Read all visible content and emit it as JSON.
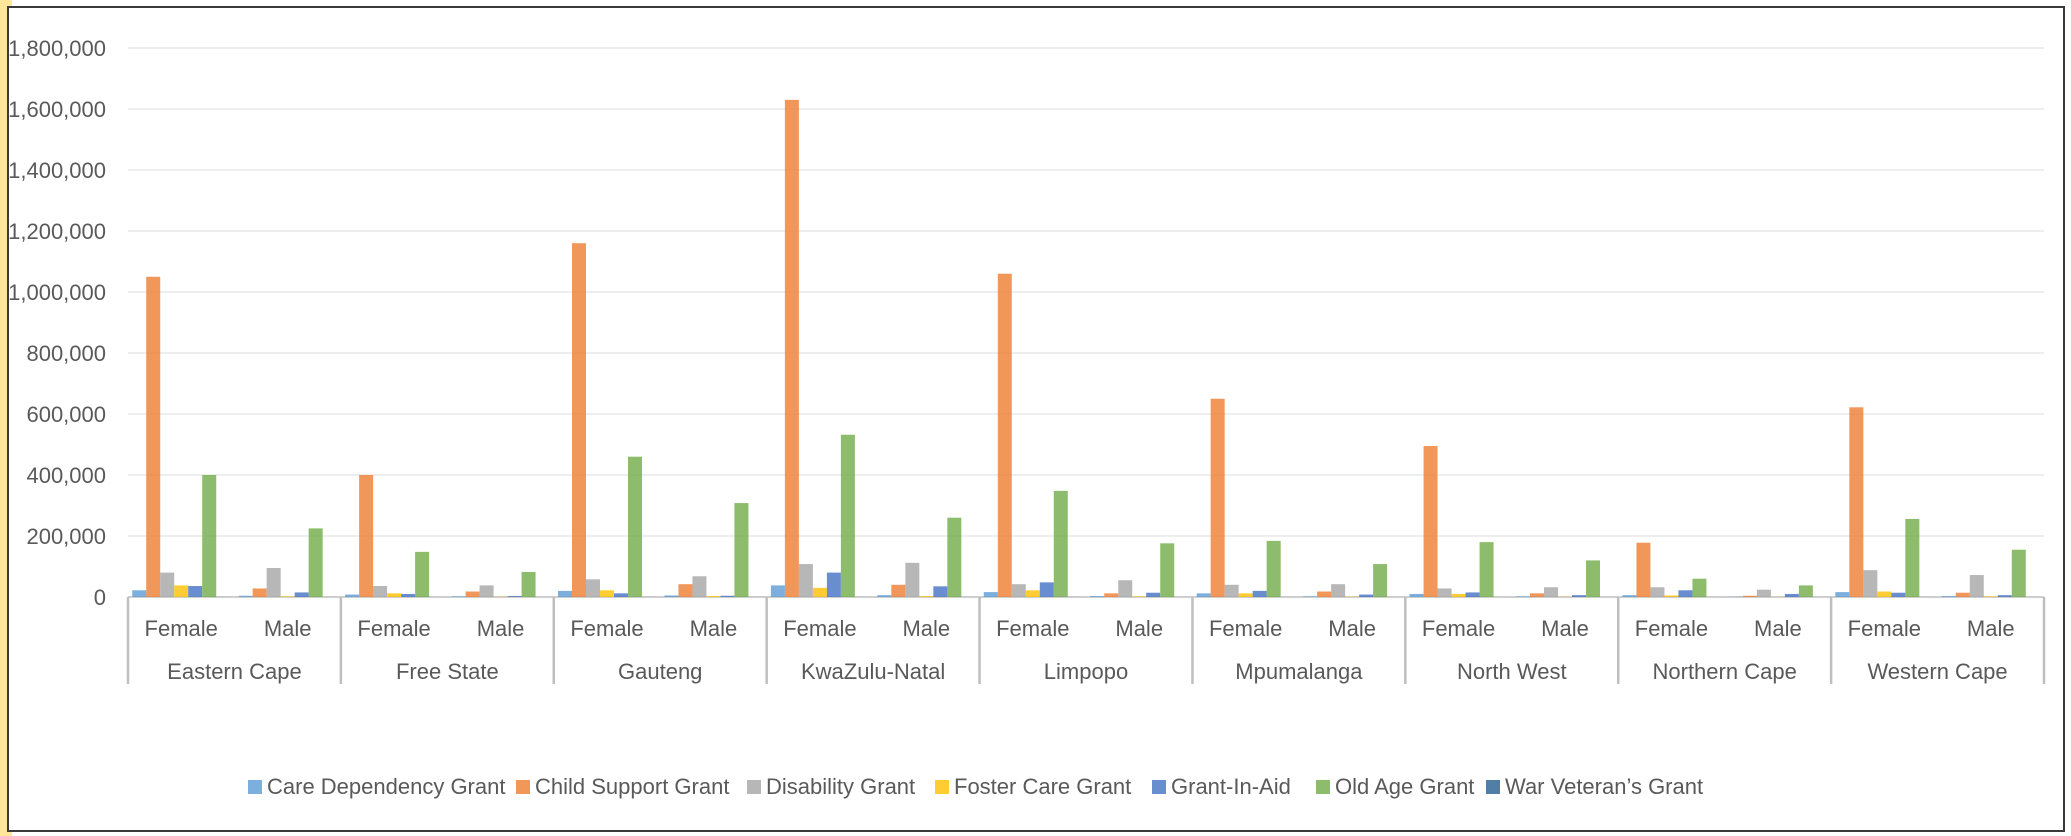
{
  "chart_data": {
    "type": "bar",
    "title": "",
    "xlabel": "",
    "ylabel": "",
    "ylim": [
      0,
      1800000
    ],
    "yticks": [
      0,
      200000,
      400000,
      600000,
      800000,
      1000000,
      1200000,
      1400000,
      1600000,
      1800000
    ],
    "ytick_labels": [
      "0",
      "200,000",
      "400,000",
      "600,000",
      "800,000",
      "1,000,000",
      "1,200,000",
      "1,400,000",
      "1,600,000",
      "1,800,000"
    ],
    "grid": true,
    "legend_position": "bottom",
    "groups": [
      {
        "name": "Eastern Cape",
        "subcategories": [
          "Female",
          "Male"
        ]
      },
      {
        "name": "Free State",
        "subcategories": [
          "Female",
          "Male"
        ]
      },
      {
        "name": "Gauteng",
        "subcategories": [
          "Female",
          "Male"
        ]
      },
      {
        "name": "KwaZulu-Natal",
        "subcategories": [
          "Female",
          "Male"
        ]
      },
      {
        "name": "Limpopo",
        "subcategories": [
          "Female",
          "Male"
        ]
      },
      {
        "name": "Mpumalanga",
        "subcategories": [
          "Female",
          "Male"
        ]
      },
      {
        "name": "North West",
        "subcategories": [
          "Female",
          "Male"
        ]
      },
      {
        "name": "Northern Cape",
        "subcategories": [
          "Female",
          "Male"
        ]
      },
      {
        "name": "Western Cape",
        "subcategories": [
          "Female",
          "Male"
        ]
      }
    ],
    "series": [
      {
        "name": "Care Dependency Grant",
        "color": "#5b9bd5",
        "values": [
          22000,
          4000,
          8000,
          2000,
          20000,
          5000,
          38000,
          6000,
          16000,
          3000,
          12000,
          2000,
          10000,
          2000,
          6000,
          1000,
          16000,
          3000
        ]
      },
      {
        "name": "Child Support Grant",
        "color": "#ed7d31",
        "values": [
          1050000,
          28000,
          400000,
          18000,
          1160000,
          42000,
          1630000,
          40000,
          1060000,
          12000,
          650000,
          18000,
          495000,
          12000,
          178000,
          4000,
          622000,
          14000
        ]
      },
      {
        "name": "Disability Grant",
        "color": "#a5a5a5",
        "values": [
          80000,
          95000,
          36000,
          38000,
          58000,
          68000,
          108000,
          112000,
          42000,
          55000,
          40000,
          42000,
          28000,
          32000,
          32000,
          24000,
          88000,
          72000
        ]
      },
      {
        "name": "Foster Care Grant",
        "color": "#ffc000",
        "values": [
          38000,
          2000,
          12000,
          1000,
          22000,
          3000,
          30000,
          3000,
          22000,
          2000,
          12000,
          1000,
          10000,
          1000,
          5000,
          500,
          18000,
          2000
        ]
      },
      {
        "name": "Grant-In-Aid",
        "color": "#4472c4",
        "values": [
          36000,
          15000,
          10000,
          3000,
          12000,
          4000,
          80000,
          35000,
          48000,
          14000,
          20000,
          8000,
          15000,
          6000,
          22000,
          10000,
          14000,
          6000
        ]
      },
      {
        "name": "Old Age Grant",
        "color": "#70ad47",
        "values": [
          400000,
          225000,
          148000,
          82000,
          460000,
          308000,
          532000,
          260000,
          348000,
          176000,
          184000,
          108000,
          180000,
          120000,
          60000,
          38000,
          256000,
          155000
        ]
      },
      {
        "name": "War Veteran’s Grant",
        "color": "#255e91",
        "values": [
          200,
          100,
          50,
          50,
          300,
          150,
          150,
          100,
          100,
          50,
          100,
          50,
          50,
          50,
          20,
          20,
          150,
          100
        ]
      }
    ]
  }
}
